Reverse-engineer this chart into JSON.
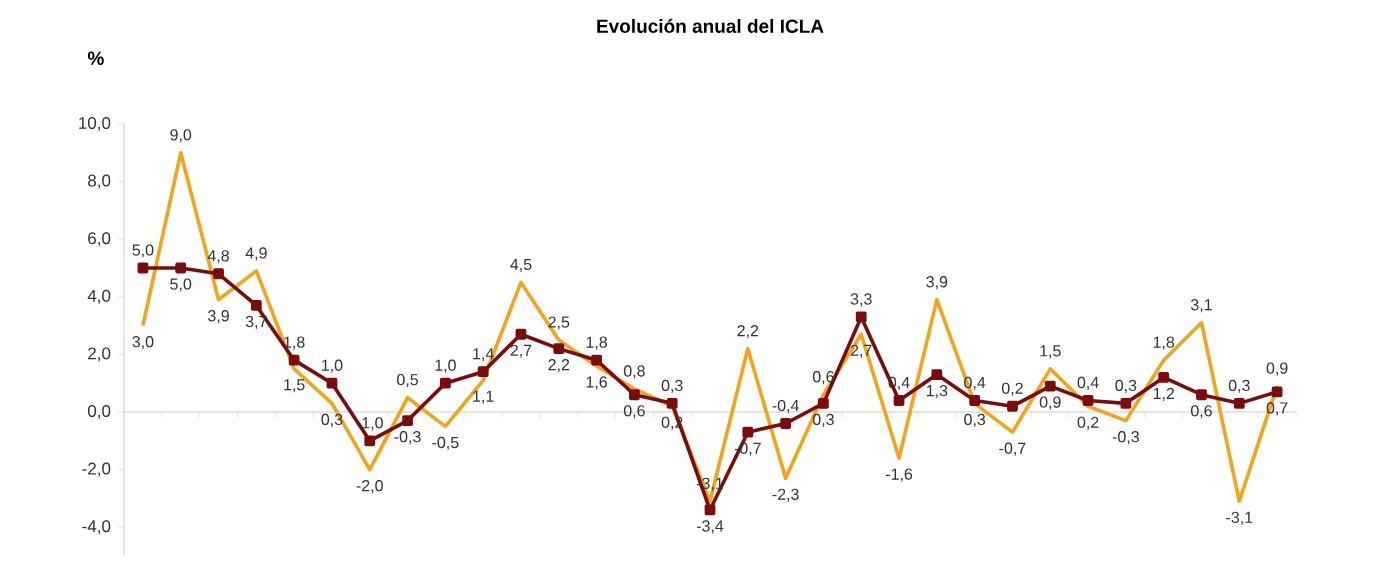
{
  "chart_data": {
    "type": "line",
    "title": "**Evolución anual del ICLA**",
    "ylabel": "**%**",
    "categories": [
      null,
      null,
      null,
      null,
      null,
      null,
      null,
      null,
      null,
      null,
      null,
      null,
      null,
      null,
      null,
      null,
      null,
      null,
      null,
      null,
      null,
      null,
      null,
      null,
      null,
      null,
      null,
      null,
      null,
      null,
      null
    ],
    "series": [
      {
        "color": "#f5a31a",
        "marker": "none",
        "values": [
          3.0,
          9.0,
          3.9,
          4.9,
          1.5,
          0.3,
          -2.0,
          0.5,
          -0.5,
          1.1,
          4.5,
          2.5,
          1.6,
          0.8,
          0.2,
          -3.1,
          2.2,
          -2.3,
          0.6,
          2.7,
          -1.6,
          3.9,
          0.3,
          -0.7,
          1.5,
          0.2,
          -0.3,
          1.8,
          3.1,
          -3.1,
          0.9
        ],
        "value_labels": [
          "3,0",
          "9,0",
          "3,9",
          "4,9",
          "1,5",
          "0,3",
          "-2,0",
          "0,5",
          "-0,5",
          "1,1",
          "4,5",
          "2,5",
          "1,6",
          "0,8",
          "0,2",
          "-3,1",
          "2,2",
          "-2,3",
          "0,6",
          "2,7",
          "-1,6",
          "3,9",
          "0,3",
          "-0,7",
          "1,5",
          "0,2",
          "-0,3",
          "1,8",
          "3,1",
          "-3,1",
          "0,9"
        ]
      },
      {
        "color": "#7b0c0c",
        "marker": "square",
        "values": [
          5.0,
          5.0,
          4.8,
          3.7,
          1.8,
          1.0,
          -1.0,
          -0.3,
          1.0,
          1.4,
          2.7,
          2.2,
          1.8,
          0.6,
          0.3,
          -3.4,
          -0.7,
          -0.4,
          0.3,
          3.3,
          0.4,
          1.3,
          0.4,
          0.2,
          0.9,
          0.4,
          0.3,
          1.2,
          0.6,
          0.3,
          0.7
        ],
        "value_labels": [
          "5,0",
          "5,0",
          "4,8",
          "3,7",
          "1,8",
          "1,0",
          "-1,0",
          "-0,3",
          "1,0",
          "1,4",
          "2,7",
          "2,2",
          "1,8",
          "0,6",
          "0,3",
          "-3,4",
          "-0,7",
          "-0,4",
          "0,3",
          "3,3",
          "0,4",
          "1,3",
          "0,4",
          "0,2",
          "0,9",
          "0,4",
          "0,3",
          "1,2",
          "0,6",
          "0,3",
          "0,7"
        ]
      }
    ],
    "ylim": [
      -5,
      10
    ],
    "yticks": [
      {
        "value": -4,
        "label": "-4,0"
      },
      {
        "value": -2,
        "label": "-2,0"
      },
      {
        "value": 0,
        "label": "0,0"
      },
      {
        "value": 2,
        "label": "2,0"
      },
      {
        "value": 4,
        "label": "4,0"
      },
      {
        "value": 6,
        "label": "6,0"
      },
      {
        "value": 8,
        "label": "8,0"
      },
      {
        "value": 10,
        "label": "10,0"
      }
    ]
  }
}
